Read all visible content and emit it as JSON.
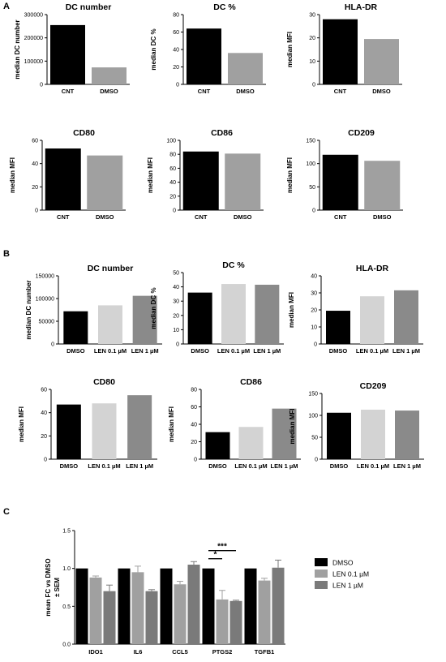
{
  "panels": [
    {
      "letter": "A"
    },
    {
      "letter": "B"
    },
    {
      "letter": "C"
    }
  ],
  "colors": {
    "DMSO": "#000000",
    "LEN 0.1 µM": "#a0a0a0",
    "LEN 1 µM": "#7a7a7a",
    "A_CNT": "#000000",
    "A_DMSO": "#a0a0a0",
    "B_DMSO": "#000000",
    "B_LEN01": "#d3d3d3",
    "B_LEN1": "#8a8a8a"
  },
  "chart_data": [
    {
      "id": "A1",
      "type": "bar",
      "title": "DC number",
      "ylabel": "median DC number",
      "categories": [
        "CNT",
        "DMSO"
      ],
      "values": [
        255000,
        73000
      ],
      "ylim": [
        0,
        300000
      ],
      "yticks": [
        0,
        100000,
        200000,
        300000
      ],
      "grid": false
    },
    {
      "id": "A2",
      "type": "bar",
      "title": "DC %",
      "ylabel": "median DC %",
      "categories": [
        "CNT",
        "DMSO"
      ],
      "values": [
        64,
        36
      ],
      "ylim": [
        0,
        80
      ],
      "yticks": [
        0,
        20,
        40,
        60,
        80
      ],
      "grid": false
    },
    {
      "id": "A3",
      "type": "bar",
      "title": "HLA-DR",
      "ylabel": "median MFI",
      "categories": [
        "CNT",
        "DMSO"
      ],
      "values": [
        28,
        19.5
      ],
      "ylim": [
        0,
        30
      ],
      "yticks": [
        0,
        10,
        20,
        30
      ],
      "grid": false
    },
    {
      "id": "A4",
      "type": "bar",
      "title": "CD80",
      "ylabel": "median MFI",
      "categories": [
        "CNT",
        "DMSO"
      ],
      "values": [
        53,
        47
      ],
      "ylim": [
        0,
        60
      ],
      "yticks": [
        0,
        20,
        40,
        60
      ],
      "grid": false
    },
    {
      "id": "A5",
      "type": "bar",
      "title": "CD86",
      "ylabel": "median MFI",
      "categories": [
        "CNT",
        "DMSO"
      ],
      "values": [
        84,
        81
      ],
      "ylim": [
        0,
        100
      ],
      "yticks": [
        0,
        20,
        40,
        60,
        80,
        100
      ],
      "grid": false
    },
    {
      "id": "A6",
      "type": "bar",
      "title": "CD209",
      "ylabel": "median MFI",
      "categories": [
        "CNT",
        "DMSO"
      ],
      "values": [
        119,
        106
      ],
      "ylim": [
        0,
        150
      ],
      "yticks": [
        0,
        50,
        100,
        150
      ],
      "grid": false
    },
    {
      "id": "B1",
      "type": "bar",
      "title": "DC number",
      "ylabel": "median DC number",
      "categories": [
        "DMSO",
        "LEN 0.1 µM",
        "LEN 1 µM"
      ],
      "values": [
        72000,
        85000,
        106000
      ],
      "ylim": [
        0,
        150000
      ],
      "yticks": [
        0,
        50000,
        100000,
        150000
      ],
      "grid": false
    },
    {
      "id": "B2",
      "type": "bar",
      "title": "DC %",
      "ylabel": "median DC %",
      "categories": [
        "DMSO",
        "LEN 0.1 µM",
        "LEN 1 µM"
      ],
      "values": [
        36,
        42,
        41.5
      ],
      "ylim": [
        0,
        50
      ],
      "yticks": [
        0,
        10,
        20,
        30,
        40,
        50
      ],
      "grid": false
    },
    {
      "id": "B3",
      "type": "bar",
      "title": "HLA-DR",
      "ylabel": "median MFI",
      "categories": [
        "DMSO",
        "LEN 0.1 µM",
        "LEN 1 µM"
      ],
      "values": [
        19.5,
        28,
        31.5
      ],
      "ylim": [
        0,
        40
      ],
      "yticks": [
        0,
        10,
        20,
        30,
        40
      ],
      "grid": false
    },
    {
      "id": "B4",
      "type": "bar",
      "title": "CD80",
      "ylabel": "median MFI",
      "categories": [
        "DMSO",
        "LEN 0.1 µM",
        "LEN 1 µM"
      ],
      "values": [
        47,
        48,
        55
      ],
      "ylim": [
        0,
        60
      ],
      "yticks": [
        0,
        20,
        40,
        60
      ],
      "grid": false
    },
    {
      "id": "B5",
      "type": "bar",
      "title": "CD86",
      "ylabel": "median MFI",
      "categories": [
        "DMSO",
        "LEN 0.1 µM",
        "LEN 1 µM"
      ],
      "values": [
        31,
        37,
        58
      ],
      "ylim": [
        0,
        80
      ],
      "yticks": [
        0,
        20,
        40,
        60,
        80
      ],
      "grid": false
    },
    {
      "id": "B6",
      "type": "bar",
      "title": "CD209",
      "ylabel": "median MFI",
      "categories": [
        "DMSO",
        "LEN 0.1 µM",
        "LEN 1 µM"
      ],
      "values": [
        106,
        113,
        111
      ],
      "ylim": [
        0,
        150
      ],
      "yticks": [
        0,
        50,
        100,
        150
      ],
      "grid": false
    },
    {
      "id": "C",
      "type": "bar",
      "title": "",
      "ylabel": "mean FC vs DMSO\n± SEM",
      "categories": [
        "IDO1",
        "IL6",
        "CCL5",
        "PTGS2",
        "TGFB1"
      ],
      "series": [
        {
          "name": "DMSO",
          "values": [
            1.0,
            1.0,
            1.0,
            1.0,
            1.0
          ],
          "err": [
            0,
            0,
            0,
            0,
            0
          ]
        },
        {
          "name": "LEN 0.1 µM",
          "values": [
            0.88,
            0.95,
            0.79,
            0.59,
            0.84
          ],
          "err": [
            0.02,
            0.08,
            0.04,
            0.12,
            0.03
          ]
        },
        {
          "name": "LEN 1 µM",
          "values": [
            0.7,
            0.7,
            1.05,
            0.57,
            1.01
          ],
          "err": [
            0.08,
            0.02,
            0.04,
            0.01,
            0.1
          ]
        }
      ],
      "ylim": [
        0,
        1.5
      ],
      "yticks": [
        "0.0",
        "0.5",
        "1.0",
        "1.5"
      ],
      "legend": "right",
      "grid": false,
      "annotations": [
        {
          "category": "PTGS2",
          "text": "*",
          "from": "DMSO",
          "to": "LEN 0.1 µM"
        },
        {
          "category": "PTGS2",
          "text": "***",
          "from": "DMSO",
          "to": "LEN 1 µM"
        }
      ]
    }
  ]
}
